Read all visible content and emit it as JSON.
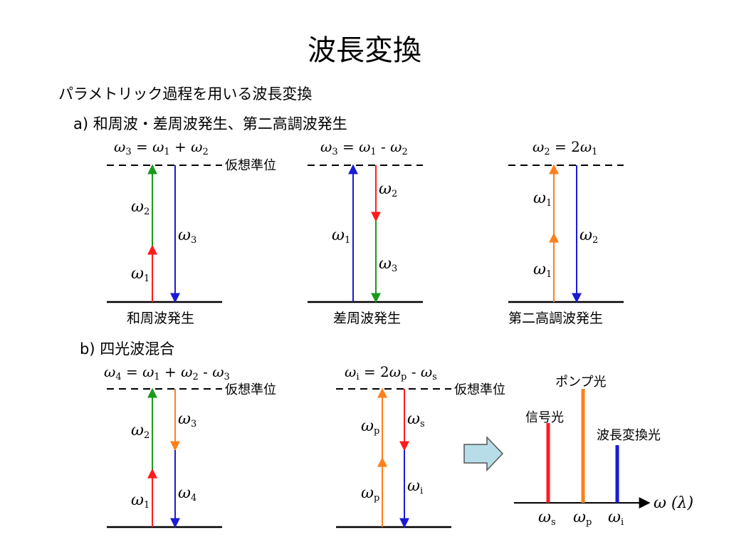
{
  "title": "波長変換",
  "subtitle": "パラメトリック過程を用いる波長変換",
  "section_a": "a) 和周波・差周波発生、第二高調波発生",
  "section_b": "b) 四光波混合",
  "virtual_level": "仮想準位",
  "colors": {
    "red": "#ff1a1a",
    "green": "#1a9a1a",
    "blue": "#1a1ad6",
    "orange": "#ff7f1a",
    "arrow_fill": "#b7dde8",
    "arrow_stroke": "#555555"
  },
  "diagrams": {
    "sfg": {
      "caption": "和周波発生",
      "equation": {
        "lhs": "ω",
        "lhs_sub": "3",
        "t1": "ω",
        "t1_sub": "1",
        "op1": "+",
        "t2": "ω",
        "t2_sub": "2"
      },
      "labels": {
        "w1": "ω",
        "w1_sub": "1",
        "w2": "ω",
        "w2_sub": "2",
        "w3": "ω",
        "w3_sub": "3"
      }
    },
    "dfg": {
      "caption": "差周波発生",
      "equation": {
        "lhs": "ω",
        "lhs_sub": "3",
        "t1": "ω",
        "t1_sub": "1",
        "op1": "-",
        "t2": "ω",
        "t2_sub": "2"
      },
      "labels": {
        "w1": "ω",
        "w1_sub": "1",
        "w2": "ω",
        "w2_sub": "2",
        "w3": "ω",
        "w3_sub": "3"
      }
    },
    "shg": {
      "caption": "第二高調波発生",
      "equation": {
        "lhs": "ω",
        "lhs_sub": "2",
        "coef": "2",
        "t1": "ω",
        "t1_sub": "1"
      },
      "labels": {
        "w1a": "ω",
        "w1a_sub": "1",
        "w1b": "ω",
        "w1b_sub": "1",
        "w2": "ω",
        "w2_sub": "2"
      }
    },
    "fwm": {
      "equation": {
        "lhs": "ω",
        "lhs_sub": "4",
        "t1": "ω",
        "t1_sub": "1",
        "op1": "+",
        "t2": "ω",
        "t2_sub": "2",
        "op2": "-",
        "t3": "ω",
        "t3_sub": "3"
      },
      "labels": {
        "w1": "ω",
        "w1_sub": "1",
        "w2": "ω",
        "w2_sub": "2",
        "w3": "ω",
        "w3_sub": "3",
        "w4": "ω",
        "w4_sub": "4"
      }
    },
    "fwm_pump": {
      "equation": {
        "lhs": "ω",
        "lhs_sub": "i",
        "coef": "2",
        "t1": "ω",
        "t1_sub": "p",
        "op1": "-",
        "t2": "ω",
        "t2_sub": "s"
      },
      "labels": {
        "wp1": "ω",
        "wp1_sub": "p",
        "wp2": "ω",
        "wp2_sub": "p",
        "ws": "ω",
        "ws_sub": "s",
        "wi": "ω",
        "wi_sub": "i"
      }
    }
  },
  "spectrum": {
    "signal_label": "信号光",
    "pump_label": "ポンプ光",
    "converted_label": "波長変換光",
    "axis_label": "ω (λ)",
    "tick_s": "ω",
    "tick_s_sub": "s",
    "tick_p": "ω",
    "tick_p_sub": "p",
    "tick_i": "ω",
    "tick_i_sub": "i"
  }
}
